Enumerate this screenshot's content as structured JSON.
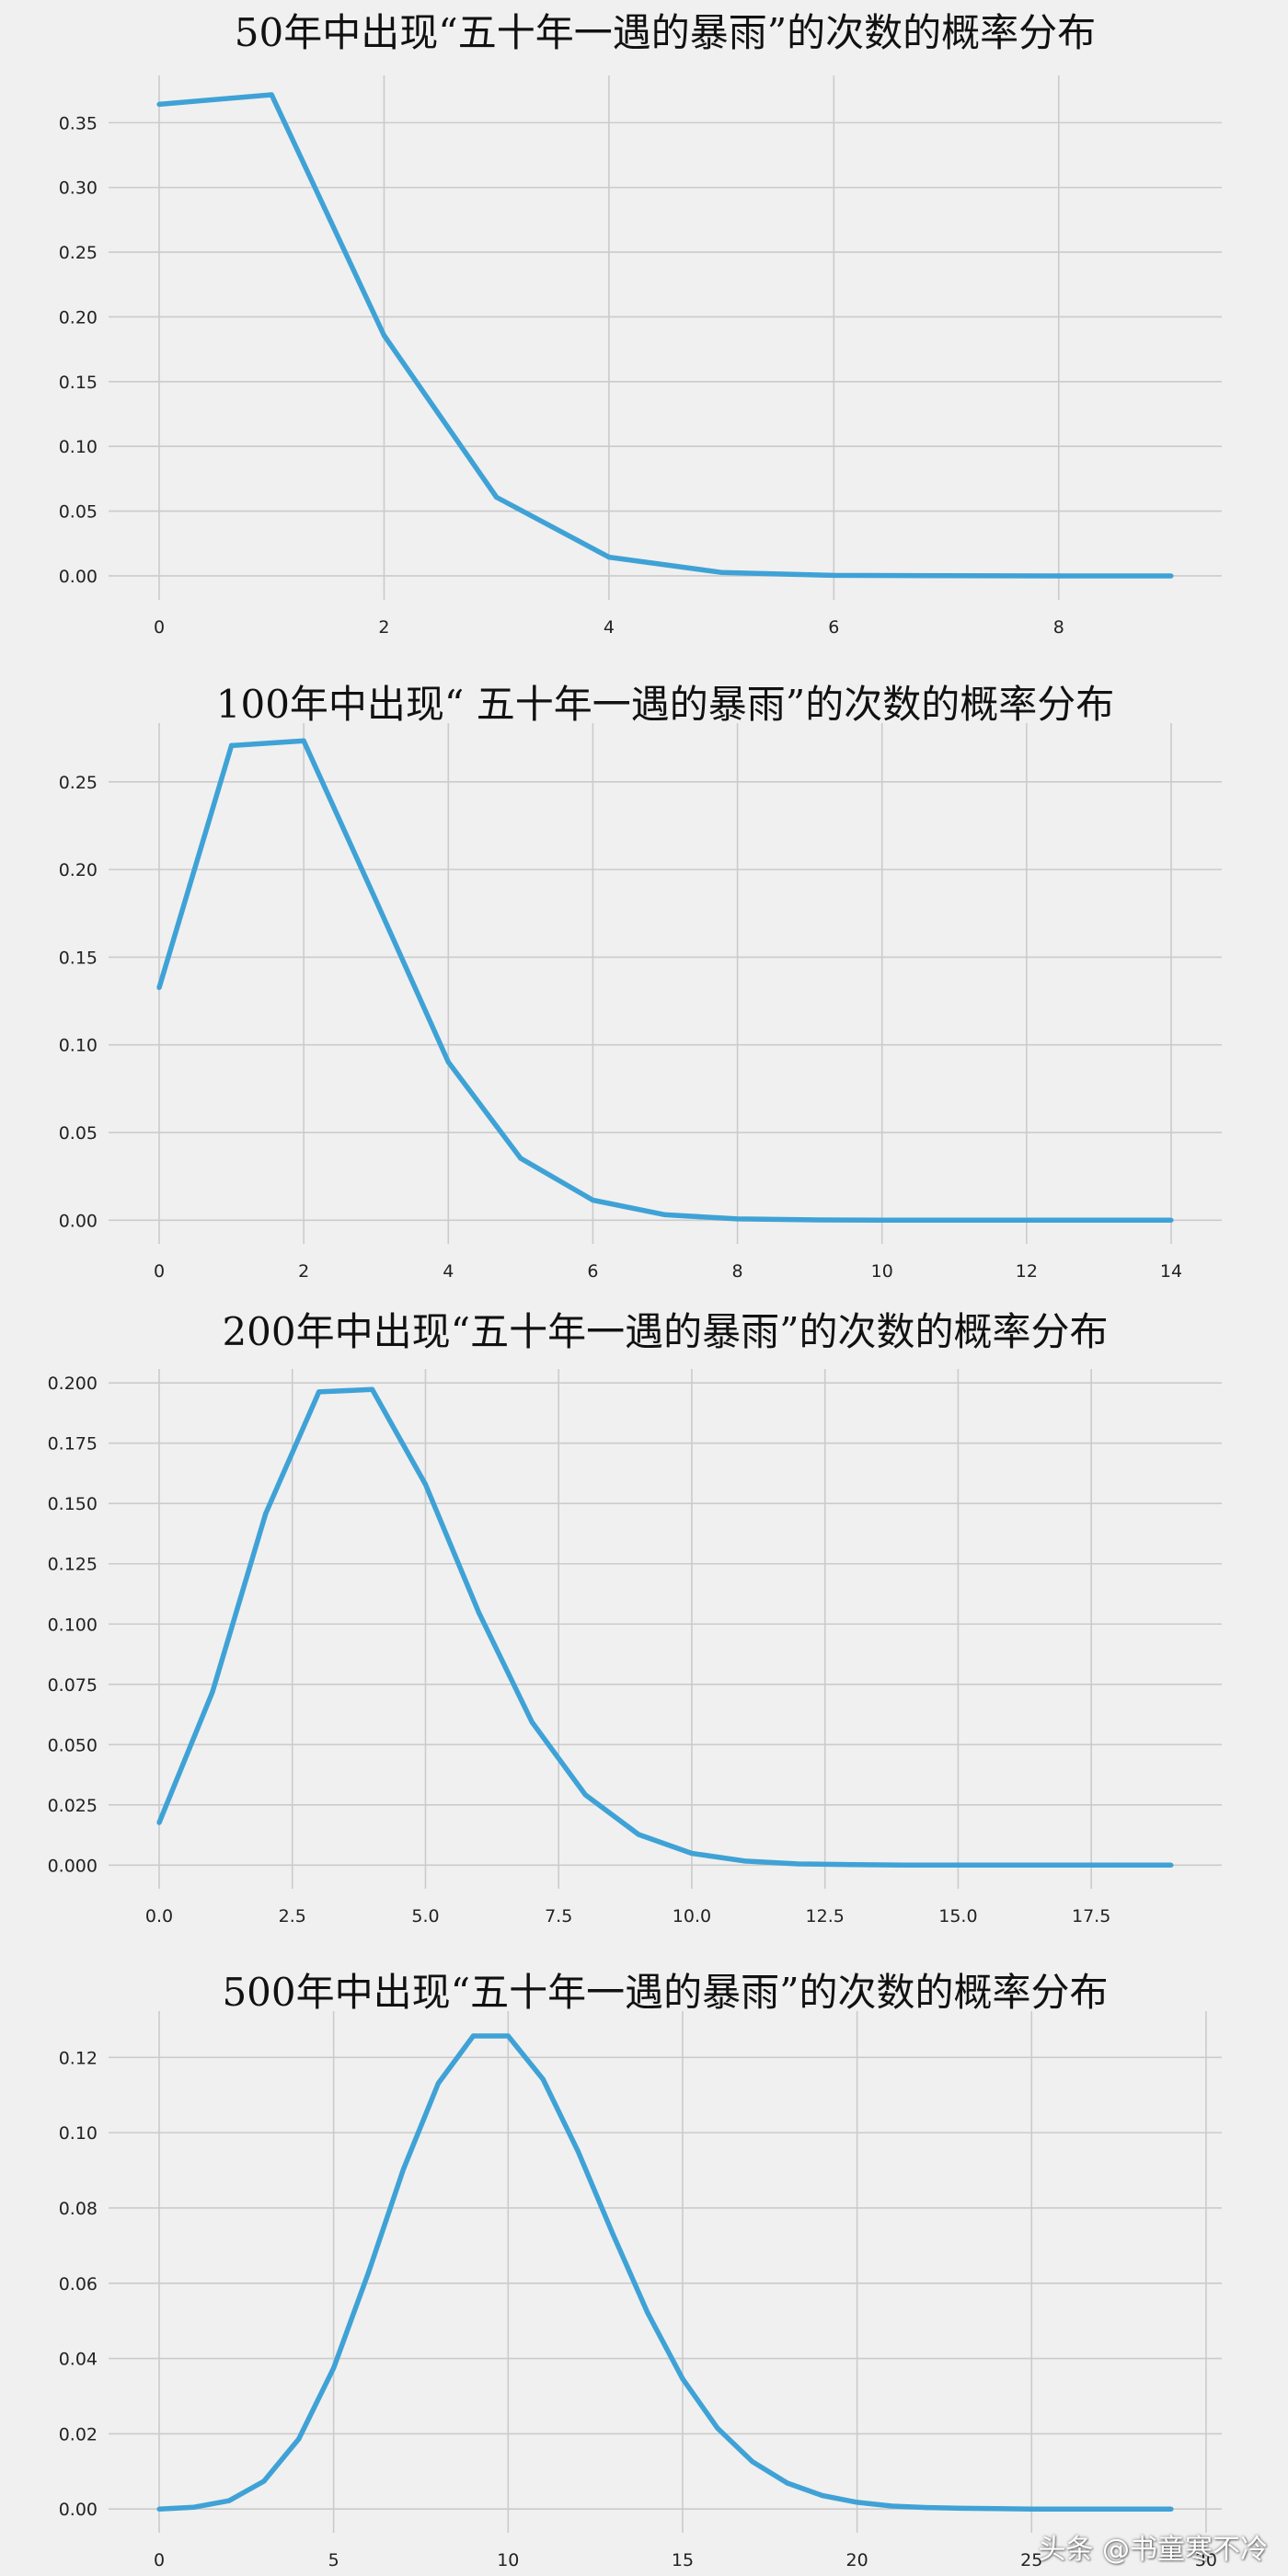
{
  "chart_data": [
    {
      "type": "line",
      "title": "50年中出现“五十年一遇的暴雨”的次数的概率分布",
      "xlabel": "",
      "ylabel": "",
      "x_ticks": [
        0,
        2,
        4,
        6,
        8
      ],
      "x_tick_labels": [
        "0",
        "2",
        "4",
        "6",
        "8"
      ],
      "y_ticks": [
        0,
        0.05,
        0.1,
        0.15,
        0.2,
        0.25,
        0.3,
        0.35
      ],
      "y_tick_labels": [
        "0.00",
        "0.05",
        "0.10",
        "0.15",
        "0.20",
        "0.25",
        "0.30",
        "0.35"
      ],
      "xlim": [
        -0.45,
        9.45
      ],
      "ylim": [
        -0.0185,
        0.3865
      ],
      "grid": true,
      "series": [
        {
          "x": [
            0,
            1,
            2,
            3,
            4,
            5,
            6,
            7,
            8,
            9
          ],
          "values": [
            0.3642,
            0.3716,
            0.1858,
            0.0607,
            0.0145,
            0.0027,
            0.0004,
            0.0001,
            0.0,
            0.0
          ]
        }
      ]
    },
    {
      "type": "line",
      "title": "100年中出现“ 五十年一遇的暴雨”的次数的概率分布",
      "xlabel": "",
      "ylabel": "",
      "x_ticks": [
        0,
        2,
        4,
        6,
        8,
        10,
        12,
        14
      ],
      "x_tick_labels": [
        "0",
        "2",
        "4",
        "6",
        "8",
        "10",
        "12",
        "14"
      ],
      "y_ticks": [
        0,
        0.05,
        0.1,
        0.15,
        0.2,
        0.25
      ],
      "y_tick_labels": [
        "0.00",
        "0.05",
        "0.10",
        "0.15",
        "0.20",
        "0.25"
      ],
      "xlim": [
        -0.7,
        14.7
      ],
      "ylim": [
        -0.0135,
        0.2835
      ],
      "grid": true,
      "series": [
        {
          "x": [
            0,
            1,
            2,
            3,
            4,
            5,
            6,
            7,
            8,
            9,
            10,
            11,
            12,
            13,
            14
          ],
          "values": [
            0.1326,
            0.2707,
            0.2734,
            0.1823,
            0.0902,
            0.0353,
            0.0114,
            0.0031,
            0.0007,
            0.0002,
            0.0,
            0.0,
            0.0,
            0.0,
            0.0
          ]
        }
      ]
    },
    {
      "type": "line",
      "title": "200年中出现“五十年一遇的暴雨”的次数的概率分布",
      "xlabel": "",
      "ylabel": "",
      "x_ticks": [
        0,
        2.5,
        5,
        7.5,
        10,
        12.5,
        15,
        17.5
      ],
      "x_tick_labels": [
        "0.0",
        "2.5",
        "5.0",
        "7.5",
        "10.0",
        "12.5",
        "15.0",
        "17.5"
      ],
      "y_ticks": [
        0,
        0.025,
        0.05,
        0.075,
        0.1,
        0.125,
        0.15,
        0.175,
        0.2
      ],
      "y_tick_labels": [
        "0.000",
        "0.025",
        "0.050",
        "0.075",
        "0.100",
        "0.125",
        "0.150",
        "0.175",
        "0.200"
      ],
      "xlim": [
        -0.95,
        19.95
      ],
      "ylim": [
        -0.0098,
        0.2058
      ],
      "grid": true,
      "series": [
        {
          "x": [
            0,
            1,
            2,
            3,
            4,
            5,
            6,
            7,
            8,
            9,
            10,
            11,
            12,
            13,
            14,
            15,
            16,
            17,
            18,
            19
          ],
          "values": [
            0.0176,
            0.0718,
            0.1458,
            0.1963,
            0.1973,
            0.1579,
            0.1048,
            0.0593,
            0.0292,
            0.0127,
            0.0049,
            0.0017,
            0.0005,
            0.0002,
            0.0,
            0.0,
            0.0,
            0.0,
            0.0,
            0.0
          ]
        }
      ]
    },
    {
      "type": "line",
      "title": "500年中出现“五十年一遇的暴雨”的次数的概率分布",
      "xlabel": "",
      "ylabel": "",
      "x_ticks": [
        0,
        5,
        10,
        15,
        20,
        25,
        30
      ],
      "x_tick_labels": [
        "0",
        "5",
        "10",
        "15",
        "20",
        "25",
        "30"
      ],
      "y_ticks": [
        0,
        0.02,
        0.04,
        0.06,
        0.08,
        0.1,
        0.12
      ],
      "y_tick_labels": [
        "0.00",
        "0.02",
        "0.04",
        "0.06",
        "0.08",
        "0.10",
        "0.12"
      ],
      "xlim": [
        -1.45,
        30.45
      ],
      "ylim": [
        -0.0063,
        0.1323
      ],
      "grid": true,
      "series": [
        {
          "x": [
            0,
            1,
            2,
            3,
            4,
            5,
            6,
            7,
            8,
            9,
            10,
            11,
            12,
            13,
            14,
            15,
            16,
            17,
            18,
            19,
            20,
            21,
            22,
            23,
            24,
            25,
            26,
            27,
            28,
            29
          ],
          "values": [
            0.0,
            0.0005,
            0.0022,
            0.0074,
            0.0186,
            0.0375,
            0.0629,
            0.0903,
            0.1131,
            0.1257,
            0.1257,
            0.1142,
            0.0951,
            0.0731,
            0.0521,
            0.0346,
            0.0215,
            0.0126,
            0.0069,
            0.0036,
            0.0018,
            0.0008,
            0.0004,
            0.0002,
            0.0001,
            0.0,
            0.0,
            0.0,
            0.0,
            0.0
          ]
        }
      ]
    }
  ],
  "style": {
    "background": "#f0f0f0",
    "grid_color": "#cbcbcb",
    "line_color": "#3fa2d6",
    "text_color": "#222222",
    "title_color": "#111111"
  },
  "watermark": "头条 @书童寒不冷"
}
